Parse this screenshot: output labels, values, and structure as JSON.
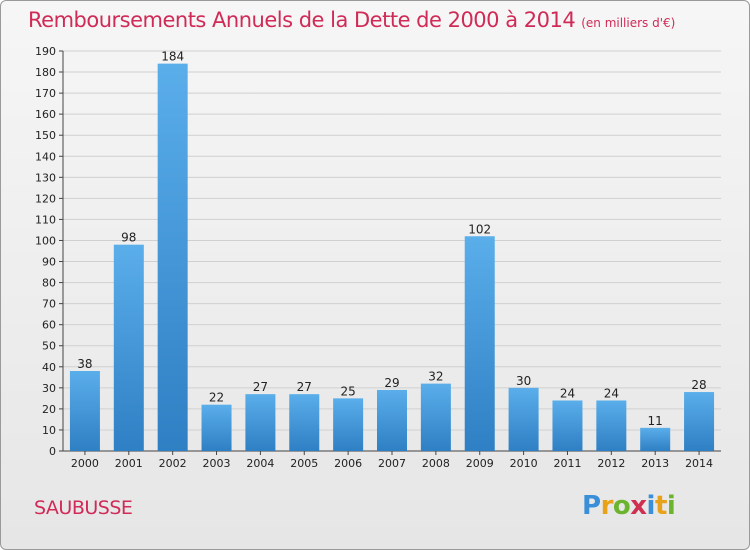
{
  "title": "Remboursements Annuels de la Dette de 2000 à 2014",
  "subtitle": "(en milliers d'€)",
  "commune": "SAUBUSSE",
  "logo": {
    "letters": [
      "P",
      "r",
      "o",
      "x",
      "i",
      "t",
      "i"
    ],
    "colors": [
      "#3a8fd8",
      "#e8a21a",
      "#6bb52e",
      "#d0304f",
      "#3a8fd8",
      "#e8a21a",
      "#6bb52e"
    ]
  },
  "chart_data": {
    "type": "bar",
    "categories": [
      "2000",
      "2001",
      "2002",
      "2003",
      "2004",
      "2005",
      "2006",
      "2007",
      "2008",
      "2009",
      "2010",
      "2011",
      "2012",
      "2013",
      "2014"
    ],
    "values": [
      38,
      98,
      184,
      22,
      27,
      27,
      25,
      29,
      32,
      102,
      30,
      24,
      24,
      11,
      28
    ],
    "ylim": [
      0,
      190
    ],
    "yticks": [
      0,
      10,
      20,
      30,
      40,
      50,
      60,
      70,
      80,
      90,
      100,
      110,
      120,
      130,
      140,
      150,
      160,
      170,
      180,
      190
    ],
    "grid": true,
    "bar_color": "#4a9ee0"
  }
}
